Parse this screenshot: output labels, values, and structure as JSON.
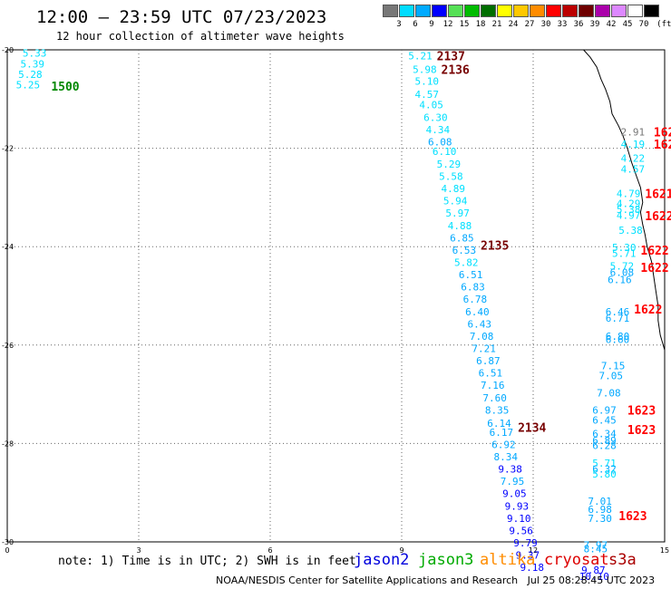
{
  "header": {
    "title": "12:00 – 23:59 UTC 07/23/2023",
    "subtitle": "12 hour collection of altimeter wave heights"
  },
  "legend": {
    "unit": "(ft)",
    "bins": [
      {
        "label": "3",
        "color": "#777777"
      },
      {
        "label": "6",
        "color": "#00dcff"
      },
      {
        "label": "9",
        "color": "#00aaff"
      },
      {
        "label": "12",
        "color": "#0000ff"
      },
      {
        "label": "15",
        "color": "#55e055"
      },
      {
        "label": "18",
        "color": "#00bb00"
      },
      {
        "label": "21",
        "color": "#006e00"
      },
      {
        "label": "24",
        "color": "#ffff00"
      },
      {
        "label": "27",
        "color": "#ffc800"
      },
      {
        "label": "30",
        "color": "#ff8c00"
      },
      {
        "label": "33",
        "color": "#ff0000"
      },
      {
        "label": "36",
        "color": "#bb0000"
      },
      {
        "label": "39",
        "color": "#6e0000"
      },
      {
        "label": "42",
        "color": "#aa00aa"
      },
      {
        "label": "45",
        "color": "#dd88ff"
      },
      {
        "label": "70",
        "color": "#ffffff"
      },
      {
        "label": "",
        "color": "#000000"
      }
    ]
  },
  "footer": {
    "note": "note: 1) Time is in UTC; 2) SWH is in feet",
    "credit": "NOAA/NESDIS Center for Satellite Applications and Research   Jul 25 08:28:45 UTC 2023",
    "satellites": [
      {
        "name": "jason2",
        "color": "#0000dd"
      },
      {
        "name": "jason3",
        "color": "#00aa00"
      },
      {
        "name": "altika",
        "color": "#ff8c00"
      },
      {
        "name": "cryosat",
        "color": "#dd0000"
      },
      {
        "name": "s3a",
        "color": "#aa0000"
      }
    ]
  },
  "colors": {
    "cyan": "#00e0ff",
    "lightblue": "#00a8ff",
    "blue": "#0000ff",
    "gray": "#777777",
    "darkred": "#770000",
    "red": "#ff0000",
    "green": "#008800",
    "coast": "#000000",
    "grid": "#666666"
  },
  "chart_data": {
    "type": "scatter",
    "x_ticks": [
      "0",
      "3",
      "6",
      "9",
      "12",
      "15"
    ],
    "y_ticks": [
      "-20",
      "-22",
      "-24",
      "-26",
      "-28",
      "-30"
    ],
    "xlim": [
      0,
      15
    ],
    "ylim": [
      -30,
      -20
    ],
    "grid": true,
    "swh_labels": [
      {
        "x": 0.35,
        "y": -20.05,
        "text": "5.33",
        "c": "cyan"
      },
      {
        "x": 0.3,
        "y": -20.27,
        "text": "5.39",
        "c": "cyan"
      },
      {
        "x": 0.25,
        "y": -20.48,
        "text": "5.28",
        "c": "cyan"
      },
      {
        "x": 0.2,
        "y": -20.69,
        "text": "5.25",
        "c": "cyan"
      },
      {
        "x": 9.15,
        "y": -20.1,
        "text": "5.21",
        "c": "cyan"
      },
      {
        "x": 9.25,
        "y": -20.38,
        "text": "5.98",
        "c": "cyan"
      },
      {
        "x": 9.3,
        "y": -20.62,
        "text": "5.10",
        "c": "cyan"
      },
      {
        "x": 9.3,
        "y": -20.88,
        "text": "4.57",
        "c": "cyan"
      },
      {
        "x": 9.4,
        "y": -21.1,
        "text": "4.05",
        "c": "cyan"
      },
      {
        "x": 9.5,
        "y": -21.35,
        "text": "6.30",
        "c": "cyan"
      },
      {
        "x": 9.55,
        "y": -21.6,
        "text": "4.34",
        "c": "cyan"
      },
      {
        "x": 9.6,
        "y": -21.85,
        "text": "6.08",
        "c": "lightblue"
      },
      {
        "x": 9.7,
        "y": -22.04,
        "text": "6.10",
        "c": "cyan"
      },
      {
        "x": 9.8,
        "y": -22.3,
        "text": "5.29",
        "c": "cyan"
      },
      {
        "x": 9.85,
        "y": -22.55,
        "text": "5.58",
        "c": "cyan"
      },
      {
        "x": 9.9,
        "y": -22.8,
        "text": "4.89",
        "c": "cyan"
      },
      {
        "x": 9.95,
        "y": -23.05,
        "text": "5.94",
        "c": "cyan"
      },
      {
        "x": 10.0,
        "y": -23.3,
        "text": "5.97",
        "c": "cyan"
      },
      {
        "x": 10.05,
        "y": -23.55,
        "text": "4.88",
        "c": "cyan"
      },
      {
        "x": 10.1,
        "y": -23.8,
        "text": "6.85",
        "c": "lightblue"
      },
      {
        "x": 10.15,
        "y": -24.05,
        "text": "6.53",
        "c": "lightblue"
      },
      {
        "x": 10.2,
        "y": -24.3,
        "text": "5.82",
        "c": "cyan"
      },
      {
        "x": 10.3,
        "y": -24.55,
        "text": "6.51",
        "c": "lightblue"
      },
      {
        "x": 10.35,
        "y": -24.8,
        "text": "6.83",
        "c": "lightblue"
      },
      {
        "x": 10.4,
        "y": -25.05,
        "text": "6.78",
        "c": "lightblue"
      },
      {
        "x": 10.45,
        "y": -25.3,
        "text": "6.40",
        "c": "lightblue"
      },
      {
        "x": 10.5,
        "y": -25.55,
        "text": "6.43",
        "c": "lightblue"
      },
      {
        "x": 10.55,
        "y": -25.8,
        "text": "7.08",
        "c": "lightblue"
      },
      {
        "x": 10.6,
        "y": -26.05,
        "text": "7.21",
        "c": "lightblue"
      },
      {
        "x": 10.7,
        "y": -26.3,
        "text": "6.87",
        "c": "lightblue"
      },
      {
        "x": 10.75,
        "y": -26.55,
        "text": "6.51",
        "c": "lightblue"
      },
      {
        "x": 10.8,
        "y": -26.8,
        "text": "7.16",
        "c": "lightblue"
      },
      {
        "x": 10.85,
        "y": -27.05,
        "text": "7.60",
        "c": "lightblue"
      },
      {
        "x": 10.9,
        "y": -27.3,
        "text": "8.35",
        "c": "lightblue"
      },
      {
        "x": 10.95,
        "y": -27.57,
        "text": "6.14",
        "c": "lightblue"
      },
      {
        "x": 11.0,
        "y": -27.75,
        "text": "6.17",
        "c": "lightblue"
      },
      {
        "x": 11.05,
        "y": -28.0,
        "text": "6.92",
        "c": "lightblue"
      },
      {
        "x": 11.1,
        "y": -28.25,
        "text": "8.34",
        "c": "lightblue"
      },
      {
        "x": 11.2,
        "y": -28.5,
        "text": "9.38",
        "c": "blue"
      },
      {
        "x": 11.25,
        "y": -28.75,
        "text": "7.95",
        "c": "lightblue"
      },
      {
        "x": 11.3,
        "y": -29.0,
        "text": "9.05",
        "c": "blue"
      },
      {
        "x": 11.35,
        "y": -29.25,
        "text": "9.93",
        "c": "blue"
      },
      {
        "x": 11.4,
        "y": -29.5,
        "text": "9.10",
        "c": "blue"
      },
      {
        "x": 11.45,
        "y": -29.75,
        "text": "9.56",
        "c": "blue"
      },
      {
        "x": 11.55,
        "y": -30.0,
        "text": "9.79",
        "c": "blue"
      },
      {
        "x": 11.6,
        "y": -30.25,
        "text": "9.37",
        "c": "blue"
      },
      {
        "x": 11.7,
        "y": -30.5,
        "text": "9.18",
        "c": "blue"
      },
      {
        "x": 14.0,
        "y": -21.65,
        "text": "2.91",
        "c": "gray"
      },
      {
        "x": 14.0,
        "y": -21.9,
        "text": "4.19",
        "c": "cyan"
      },
      {
        "x": 14.0,
        "y": -22.18,
        "text": "4.22",
        "c": "cyan"
      },
      {
        "x": 14.0,
        "y": -22.4,
        "text": "4.57",
        "c": "cyan"
      },
      {
        "x": 13.9,
        "y": -22.9,
        "text": "4.79",
        "c": "cyan"
      },
      {
        "x": 13.9,
        "y": -23.1,
        "text": "4.29",
        "c": "cyan"
      },
      {
        "x": 13.9,
        "y": -23.22,
        "text": "5.38",
        "c": "cyan"
      },
      {
        "x": 13.9,
        "y": -23.34,
        "text": "4.97",
        "c": "cyan"
      },
      {
        "x": 13.95,
        "y": -23.65,
        "text": "5.38",
        "c": "cyan"
      },
      {
        "x": 13.8,
        "y": -24.0,
        "text": "5.30",
        "c": "cyan"
      },
      {
        "x": 13.8,
        "y": -24.12,
        "text": "5.71",
        "c": "cyan"
      },
      {
        "x": 13.75,
        "y": -24.37,
        "text": "5.72",
        "c": "cyan"
      },
      {
        "x": 13.75,
        "y": -24.5,
        "text": "6.08",
        "c": "lightblue"
      },
      {
        "x": 13.7,
        "y": -24.65,
        "text": "6.16",
        "c": "lightblue"
      },
      {
        "x": 13.65,
        "y": -25.3,
        "text": "6.46",
        "c": "lightblue"
      },
      {
        "x": 13.65,
        "y": -25.43,
        "text": "6.71",
        "c": "lightblue"
      },
      {
        "x": 13.65,
        "y": -25.8,
        "text": "6.80",
        "c": "lightblue"
      },
      {
        "x": 13.65,
        "y": -25.87,
        "text": "6.60",
        "c": "lightblue"
      },
      {
        "x": 13.55,
        "y": -26.4,
        "text": "7.15",
        "c": "lightblue"
      },
      {
        "x": 13.5,
        "y": -26.6,
        "text": "7.05",
        "c": "lightblue"
      },
      {
        "x": 13.45,
        "y": -26.95,
        "text": "7.08",
        "c": "lightblue"
      },
      {
        "x": 13.35,
        "y": -27.3,
        "text": "6.97",
        "c": "lightblue"
      },
      {
        "x": 13.35,
        "y": -27.5,
        "text": "6.45",
        "c": "lightblue"
      },
      {
        "x": 13.35,
        "y": -27.78,
        "text": "6.34",
        "c": "lightblue"
      },
      {
        "x": 13.35,
        "y": -27.92,
        "text": "6.89",
        "c": "lightblue"
      },
      {
        "x": 13.35,
        "y": -28.02,
        "text": "6.28",
        "c": "lightblue"
      },
      {
        "x": 13.35,
        "y": -28.38,
        "text": "5.71",
        "c": "cyan"
      },
      {
        "x": 13.35,
        "y": -28.5,
        "text": "6.32",
        "c": "lightblue"
      },
      {
        "x": 13.35,
        "y": -28.6,
        "text": "5.80",
        "c": "cyan"
      },
      {
        "x": 13.25,
        "y": -29.15,
        "text": "7.01",
        "c": "lightblue"
      },
      {
        "x": 13.25,
        "y": -29.32,
        "text": "6.98",
        "c": "lightblue"
      },
      {
        "x": 13.25,
        "y": -29.5,
        "text": "7.30",
        "c": "lightblue"
      },
      {
        "x": 13.15,
        "y": -30.05,
        "text": "7.97",
        "c": "lightblue"
      },
      {
        "x": 13.15,
        "y": -30.12,
        "text": "8.45",
        "c": "lightblue"
      },
      {
        "x": 13.1,
        "y": -30.55,
        "text": "9.87",
        "c": "blue"
      },
      {
        "x": 13.05,
        "y": -30.68,
        "text": "10.10",
        "c": "blue"
      }
    ],
    "time_labels": [
      {
        "x": 1.0,
        "y": -20.72,
        "text": "1500",
        "c": "green"
      },
      {
        "x": 9.8,
        "y": -20.1,
        "text": "2137",
        "c": "darkred"
      },
      {
        "x": 9.9,
        "y": -20.38,
        "text": "2136",
        "c": "darkred"
      },
      {
        "x": 10.8,
        "y": -23.95,
        "text": "2135",
        "c": "darkred"
      },
      {
        "x": 11.65,
        "y": -27.65,
        "text": "2134",
        "c": "darkred"
      },
      {
        "x": 14.75,
        "y": -21.65,
        "text": "162",
        "c": "red"
      },
      {
        "x": 14.75,
        "y": -21.9,
        "text": "162",
        "c": "red"
      },
      {
        "x": 14.55,
        "y": -22.9,
        "text": "1621",
        "c": "red"
      },
      {
        "x": 14.55,
        "y": -23.35,
        "text": "1622",
        "c": "red"
      },
      {
        "x": 14.45,
        "y": -24.05,
        "text": "1622",
        "c": "red"
      },
      {
        "x": 14.45,
        "y": -24.4,
        "text": "1622",
        "c": "red"
      },
      {
        "x": 14.3,
        "y": -25.25,
        "text": "1622",
        "c": "red"
      },
      {
        "x": 14.15,
        "y": -27.3,
        "text": "1623",
        "c": "red"
      },
      {
        "x": 14.15,
        "y": -27.7,
        "text": "1623",
        "c": "red"
      },
      {
        "x": 13.95,
        "y": -29.45,
        "text": "1623",
        "c": "red"
      }
    ],
    "coastline": [
      [
        13.15,
        -20.0
      ],
      [
        13.3,
        -20.15
      ],
      [
        13.45,
        -20.35
      ],
      [
        13.55,
        -20.6
      ],
      [
        13.65,
        -20.8
      ],
      [
        13.75,
        -21.05
      ],
      [
        13.8,
        -21.3
      ],
      [
        13.95,
        -21.55
      ],
      [
        14.05,
        -21.75
      ],
      [
        14.15,
        -22.0
      ],
      [
        14.25,
        -22.3
      ],
      [
        14.35,
        -22.55
      ],
      [
        14.45,
        -22.8
      ],
      [
        14.5,
        -23.1
      ],
      [
        14.45,
        -23.3
      ],
      [
        14.5,
        -23.55
      ],
      [
        14.55,
        -23.75
      ],
      [
        14.6,
        -24.0
      ],
      [
        14.7,
        -24.3
      ],
      [
        14.75,
        -24.6
      ],
      [
        14.8,
        -24.9
      ],
      [
        14.85,
        -25.2
      ],
      [
        14.85,
        -25.5
      ],
      [
        14.9,
        -25.8
      ],
      [
        15.0,
        -26.1
      ],
      [
        15.0,
        -26.3
      ]
    ]
  }
}
